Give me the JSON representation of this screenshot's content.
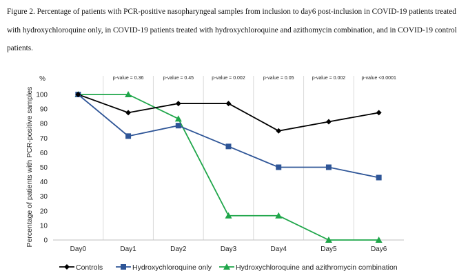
{
  "caption": {
    "line1": "Figure 2. Percentage of patients with PCR-positive nasopharyngeal samples from inclusion to day6 post-inclusion in COVID-19 patients treated",
    "line2": "with hydroxychloroquine only, in COVID-19 patients treated with hydroxychloroquine and azithomycin combination, and in COVID-19 control",
    "line3": "patients."
  },
  "chart_data": {
    "type": "line",
    "categories": [
      "Day0",
      "Day1",
      "Day2",
      "Day3",
      "Day4",
      "Day5",
      "Day6"
    ],
    "series": [
      {
        "name": "Controls",
        "color": "#000000",
        "marker": "diamond",
        "values": [
          100,
          87.5,
          93.8,
          93.8,
          75,
          81.3,
          87.5
        ]
      },
      {
        "name": "Hydroxychloroquine only",
        "color": "#2e5597",
        "marker": "square",
        "values": [
          100,
          71.4,
          78.6,
          64.3,
          50,
          50,
          42.9
        ]
      },
      {
        "name": "Hydroxychloroquine and azithromycin combination",
        "color": "#1fa64a",
        "marker": "triangle",
        "values": [
          100,
          100,
          83.3,
          16.7,
          16.7,
          0,
          0
        ]
      }
    ],
    "ylabel": "Percentage of patients with PCR-positive samples",
    "yunit": "%",
    "ylim": [
      0,
      100
    ],
    "yticks": [
      0,
      10,
      20,
      30,
      40,
      50,
      60,
      70,
      80,
      90,
      100
    ],
    "pvalues": [
      "p-value = 0.36",
      "p-value = 0.45",
      "p-value = 0.002",
      "p-value = 0.05",
      "p-value = 0.002",
      "p-value <0.0001"
    ],
    "grid": "vertical",
    "legend": "bottom"
  }
}
